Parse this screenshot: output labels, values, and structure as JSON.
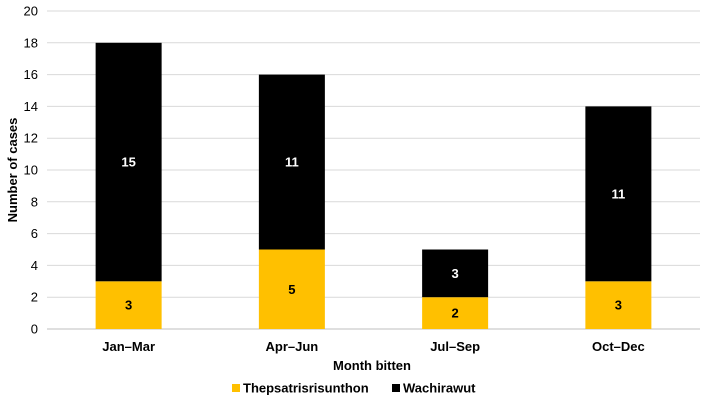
{
  "chart_data": {
    "type": "bar",
    "stacked": true,
    "categories": [
      "Jan–Mar",
      "Apr–Jun",
      "Jul–Sep",
      "Oct–Dec"
    ],
    "series": [
      {
        "name": "Thepsatrisrisunthon",
        "values": [
          3,
          5,
          2,
          3
        ],
        "color": "#FFC000",
        "label_color": "#000000"
      },
      {
        "name": "Wachirawut",
        "values": [
          15,
          11,
          3,
          11
        ],
        "color": "#000000",
        "label_color": "#ffffff"
      }
    ],
    "xlabel": "Month bitten",
    "ylabel": "Number of cases",
    "ylim": [
      0,
      20
    ],
    "yticks": [
      0,
      2,
      4,
      6,
      8,
      10,
      12,
      14,
      16,
      18,
      20
    ],
    "grid": true,
    "legend_position": "bottom"
  }
}
